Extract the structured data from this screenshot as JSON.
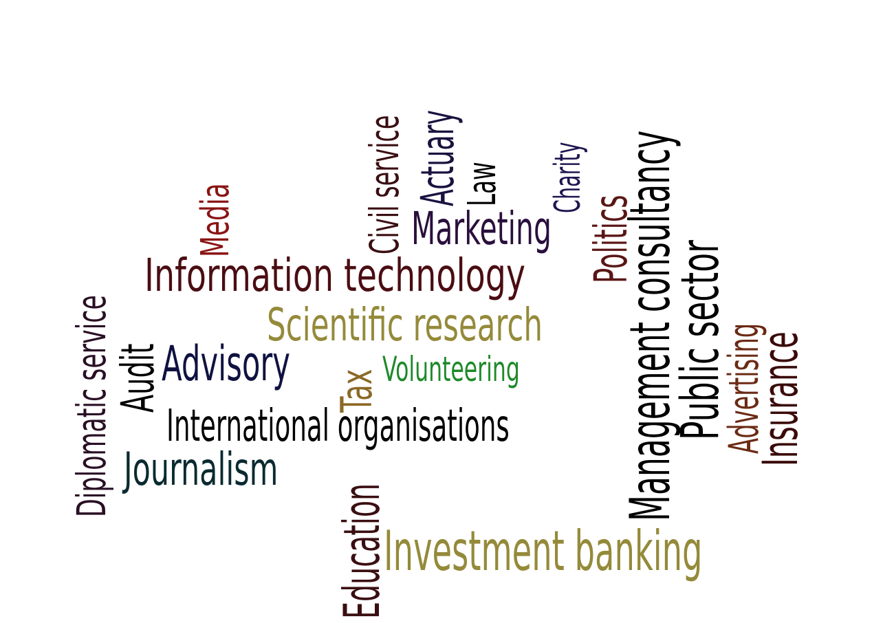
{
  "words": {
    "diplomatic_service": {
      "text": "Diplomatic service",
      "color": "#2a0f24"
    },
    "media": {
      "text": "Media",
      "color": "#8a1414"
    },
    "information_technology": {
      "text": "Information technology",
      "color": "#4a0d12"
    },
    "civil_service": {
      "text": "Civil service",
      "color": "#3a0e12"
    },
    "actuary": {
      "text": "Actuary",
      "color": "#1b1240"
    },
    "law": {
      "text": "Law",
      "color": "#000000"
    },
    "marketing": {
      "text": "Marketing",
      "color": "#2a0f3c"
    },
    "charity": {
      "text": "Charity",
      "color": "#1e1650"
    },
    "politics": {
      "text": "Politics",
      "color": "#5a1616"
    },
    "management_consultancy": {
      "text": "Management consultancy",
      "color": "#000000"
    },
    "public_sector": {
      "text": "Public sector",
      "color": "#000000"
    },
    "advertising": {
      "text": "Advertising",
      "color": "#6b2a14"
    },
    "insurance": {
      "text": "Insurance",
      "color": "#3a0a0a"
    },
    "audit": {
      "text": "Audit",
      "color": "#000000"
    },
    "advisory": {
      "text": "Advisory",
      "color": "#0f1240"
    },
    "scientific_research": {
      "text": "Scientific research",
      "color": "#948a3a"
    },
    "tax": {
      "text": "Tax",
      "color": "#8a6a26"
    },
    "volunteering": {
      "text": "Volunteering",
      "color": "#1e8a2a"
    },
    "international_organisations": {
      "text": "International organisations",
      "color": "#000000"
    },
    "journalism": {
      "text": "Journalism",
      "color": "#0a2a30"
    },
    "education": {
      "text": "Education",
      "color": "#3a0e12"
    },
    "investment_banking": {
      "text": "Investment banking",
      "color": "#948a3a"
    }
  }
}
